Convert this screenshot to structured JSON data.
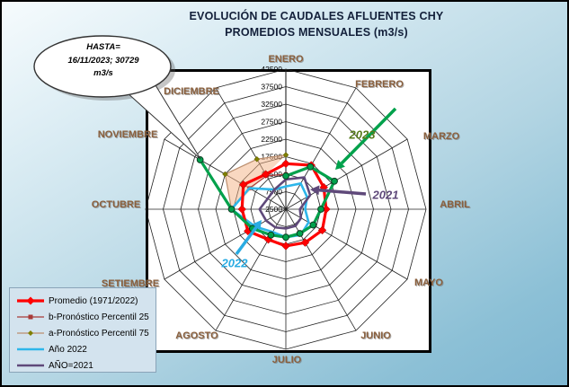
{
  "title": {
    "line1": "EVOLUCIÓN DE CAUDALES AFLUENTES CHY",
    "line2": "PROMEDIOS MENSUALES (m3/s)"
  },
  "callout": {
    "line1": "HASTA=",
    "line2": "16/11/2023; 30729",
    "line3": "m3/s"
  },
  "annotations": {
    "y2023": {
      "label": "2023",
      "color": "#567a1b",
      "arrow_color": "#00a14b"
    },
    "y2021": {
      "label": "2021",
      "color": "#5f497a",
      "arrow_color": "#5f497a"
    },
    "y2022": {
      "label": "2022",
      "color": "#29abe2",
      "arrow_color": "#29abe2"
    }
  },
  "legend": {
    "items": [
      {
        "label": "Promedio (1971/2022)",
        "series": 3
      },
      {
        "label": "b-Pronóstico  Percentil 25",
        "series": 1
      },
      {
        "label": "a-Pronóstico  Percentil 75",
        "series": 0
      },
      {
        "label": "Año 2022",
        "series": 2
      },
      {
        "label": "AÑO=2021",
        "series": 4
      }
    ]
  },
  "chart_data": {
    "type": "radar",
    "title": "EVOLUCIÓN DE CAUDALES AFLUENTES CHY — PROMEDIOS MENSUALES (m3/s)",
    "categories": [
      "ENERO",
      "FEBRERO",
      "MARZO",
      "ABRIL",
      "MAYO",
      "JUNIO",
      "JULIO",
      "AGOSTO",
      "SETIEMBRE",
      "OCTUBRE",
      "NOVIEMBRE",
      "DICIEMBRE"
    ],
    "axis": {
      "min": 2500,
      "max": 42500,
      "step": 5000,
      "tick_labels": [
        "2500",
        "7500",
        "12500",
        "17500",
        "22500",
        "27500",
        "32500",
        "37500",
        "42500"
      ],
      "grid": true
    },
    "series": [
      {
        "name": "a-Pronóstico Percentil 75",
        "color": "#bc8f6f",
        "width": 1.2,
        "marker": "diamond-olive",
        "fill": "rgba(244,177,131,0.5)",
        "values": [
          18000,
          null,
          null,
          null,
          null,
          null,
          null,
          null,
          null,
          18000,
          22500,
          19000
        ]
      },
      {
        "name": "b-Pronóstico Percentil 25",
        "color": "#a93a38",
        "width": 1.2,
        "marker": "square",
        "values": [
          12500,
          null,
          null,
          null,
          null,
          null,
          null,
          null,
          null,
          18000,
          14500,
          13500
        ]
      },
      {
        "name": "Año 2022",
        "color": "#2eb6ea",
        "width": 2.6,
        "marker": "none",
        "values": [
          9000,
          11000,
          9500,
          8000,
          10000,
          11000,
          10500,
          10000,
          12500,
          18000,
          14500,
          9000
        ]
      },
      {
        "name": "Promedio (1971/2022)",
        "color": "#ff0000",
        "width": 3.2,
        "marker": "diamond",
        "values": [
          15500,
          17000,
          15000,
          14000,
          14500,
          13500,
          13000,
          12500,
          15000,
          15000,
          16500,
          14000
        ]
      },
      {
        "name": "AÑO=2021",
        "color": "#5f497a",
        "width": 2.6,
        "marker": "none",
        "values": [
          11000,
          13000,
          10500,
          6500,
          7500,
          8000,
          8000,
          8500,
          9000,
          10000,
          8500,
          9000
        ]
      },
      {
        "name": "Año 2023",
        "color": "#00a14b",
        "width": 3.2,
        "marker": "circle",
        "values": [
          12000,
          16500,
          18500,
          12500,
          11500,
          10500,
          10500,
          11000,
          13500,
          18000,
          30729,
          null
        ]
      }
    ],
    "legend_position": "bottom-left",
    "notes": "Center of radar = 2500; rings every 5000 up to 42500. Callout: HASTA= 16/11/2023; 30729 m3/s points at NOVIEMBRE value of Año 2023."
  }
}
